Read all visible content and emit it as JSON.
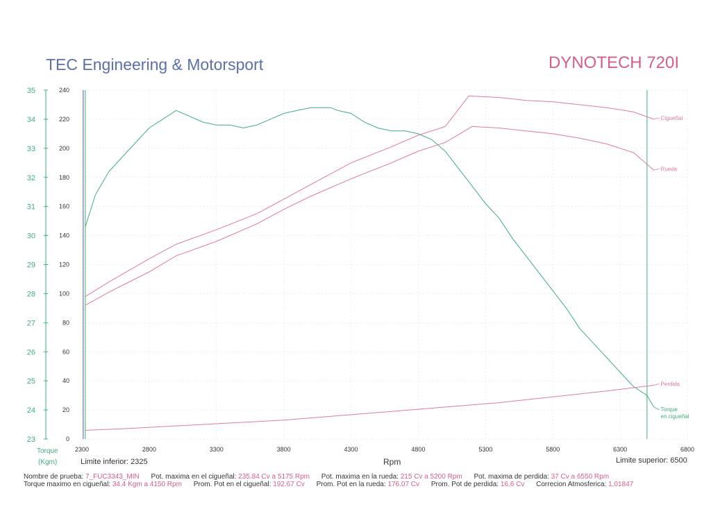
{
  "header": {
    "company": "TEC Engineering & Motorsport",
    "model": "DYNOTECH 720I"
  },
  "axes": {
    "left_title_1": "Torque",
    "left_title_2": "(Kgm)",
    "x_label": "Rpm",
    "limit_inferior": "Limite inferior:  2325",
    "limit_superior": "Limite superior:  6500"
  },
  "info": {
    "line1": [
      {
        "k": "Nombre de prueba:",
        "v": "7_FUC3343_MIN"
      },
      {
        "k": "Pot. maxima en el cigueñal:",
        "v": "235.84 Cv a  5175 Rpm"
      },
      {
        "k": "Pot. maxima en la rueda:",
        "v": "215 Cv a  5200 Rpm"
      },
      {
        "k": "Pot. maxima de perdida:",
        "v": "37 Cv a  6550 Rpm"
      }
    ],
    "line2": [
      {
        "k": "Torque maximo en cigueñal:",
        "v": "34.4 Kgm a  4150 Rpm"
      },
      {
        "k": "Prom. Pot en el cigueñal:",
        "v": "192.67 Cv"
      },
      {
        "k": "Prom. Pot en la rueda:",
        "v": "176.07 Cv"
      },
      {
        "k": "Prom. Pot de perdida:",
        "v": "16.6 Cv"
      },
      {
        "k": "Correcion Atmosferica:",
        "v": "1,01847"
      }
    ]
  },
  "colors": {
    "torque": "#3fae7a",
    "power": "#e07a97",
    "grid": "#dddddd",
    "axis": "#3fae7a",
    "limit_inf": "#6e6ec8"
  },
  "chart_data": {
    "type": "line",
    "xlabel": "Rpm",
    "xlim": [
      2300,
      6800
    ],
    "x_ticks": [
      "2300",
      "2800",
      "3300",
      "3800",
      "4300",
      "4800",
      "5300",
      "5800",
      "6300",
      "6800"
    ],
    "torque_axis": {
      "ylim": [
        23,
        35
      ],
      "ticks": [
        "23",
        "24",
        "25",
        "26",
        "27",
        "28",
        "29",
        "30",
        "31",
        "32",
        "33",
        "34",
        "35"
      ]
    },
    "power_axis": {
      "ylim": [
        0,
        240
      ],
      "ticks": [
        "0",
        "20",
        "40",
        "60",
        "80",
        "100",
        "120",
        "140",
        "160",
        "180",
        "200",
        "220",
        "240"
      ]
    },
    "limits": {
      "inferior": 2325,
      "superior": 6500
    },
    "series": [
      {
        "name": "Cigueñal",
        "axis": "power",
        "x": [
          2325,
          2500,
          2800,
          3000,
          3300,
          3600,
          3800,
          4000,
          4300,
          4600,
          4800,
          5000,
          5175,
          5400,
          5600,
          5800,
          6000,
          6200,
          6400,
          6550
        ],
        "y": [
          98,
          108,
          124,
          134,
          144,
          155,
          165,
          175,
          190,
          201,
          209,
          215,
          236,
          235,
          233,
          232,
          230,
          228,
          225,
          220
        ]
      },
      {
        "name": "Rueda",
        "axis": "power",
        "x": [
          2325,
          2500,
          2800,
          3000,
          3300,
          3600,
          3800,
          4000,
          4300,
          4600,
          4800,
          5000,
          5200,
          5400,
          5600,
          5800,
          6000,
          6200,
          6400,
          6550
        ],
        "y": [
          92,
          101,
          115,
          126,
          136,
          148,
          158,
          167,
          179,
          190,
          198,
          204,
          215,
          214,
          212,
          210,
          207,
          203,
          197,
          185
        ]
      },
      {
        "name": "Torque en cigueñal",
        "axis": "torque",
        "x": [
          2325,
          2400,
          2500,
          2600,
          2700,
          2800,
          2900,
          3000,
          3100,
          3200,
          3300,
          3400,
          3500,
          3600,
          3700,
          3800,
          3900,
          4000,
          4100,
          4150,
          4200,
          4300,
          4400,
          4500,
          4600,
          4700,
          4800,
          4900,
          5000,
          5100,
          5200,
          5300,
          5400,
          5500,
          5600,
          5700,
          5800,
          5900,
          6000,
          6100,
          6200,
          6300,
          6400,
          6500,
          6550
        ],
        "y": [
          30.3,
          31.4,
          32.2,
          32.7,
          33.2,
          33.7,
          34.0,
          34.3,
          34.1,
          33.9,
          33.8,
          33.8,
          33.7,
          33.8,
          34.0,
          34.2,
          34.3,
          34.4,
          34.4,
          34.4,
          34.3,
          34.2,
          33.9,
          33.7,
          33.6,
          33.6,
          33.5,
          33.3,
          32.9,
          32.3,
          31.7,
          31.1,
          30.6,
          29.9,
          29.3,
          28.7,
          28.1,
          27.5,
          26.8,
          26.3,
          25.8,
          25.3,
          24.8,
          24.5,
          24.1
        ]
      },
      {
        "name": "Perdida",
        "axis": "power",
        "x": [
          2325,
          2600,
          3000,
          3400,
          3800,
          4200,
          4600,
          5000,
          5400,
          5800,
          6200,
          6550
        ],
        "y": [
          6,
          7,
          9,
          11,
          13,
          16,
          19,
          22,
          25,
          29,
          33,
          37
        ]
      }
    ],
    "series_labels": [
      {
        "name": "Cigueñal",
        "lines": [
          "Cigueñal"
        ]
      },
      {
        "name": "Rueda",
        "lines": [
          "Rueda"
        ]
      },
      {
        "name": "Perdida",
        "lines": [
          "Perdida"
        ]
      },
      {
        "name": "Torque en cigueñal",
        "lines": [
          "Torque",
          "en cigueñal"
        ]
      }
    ]
  }
}
